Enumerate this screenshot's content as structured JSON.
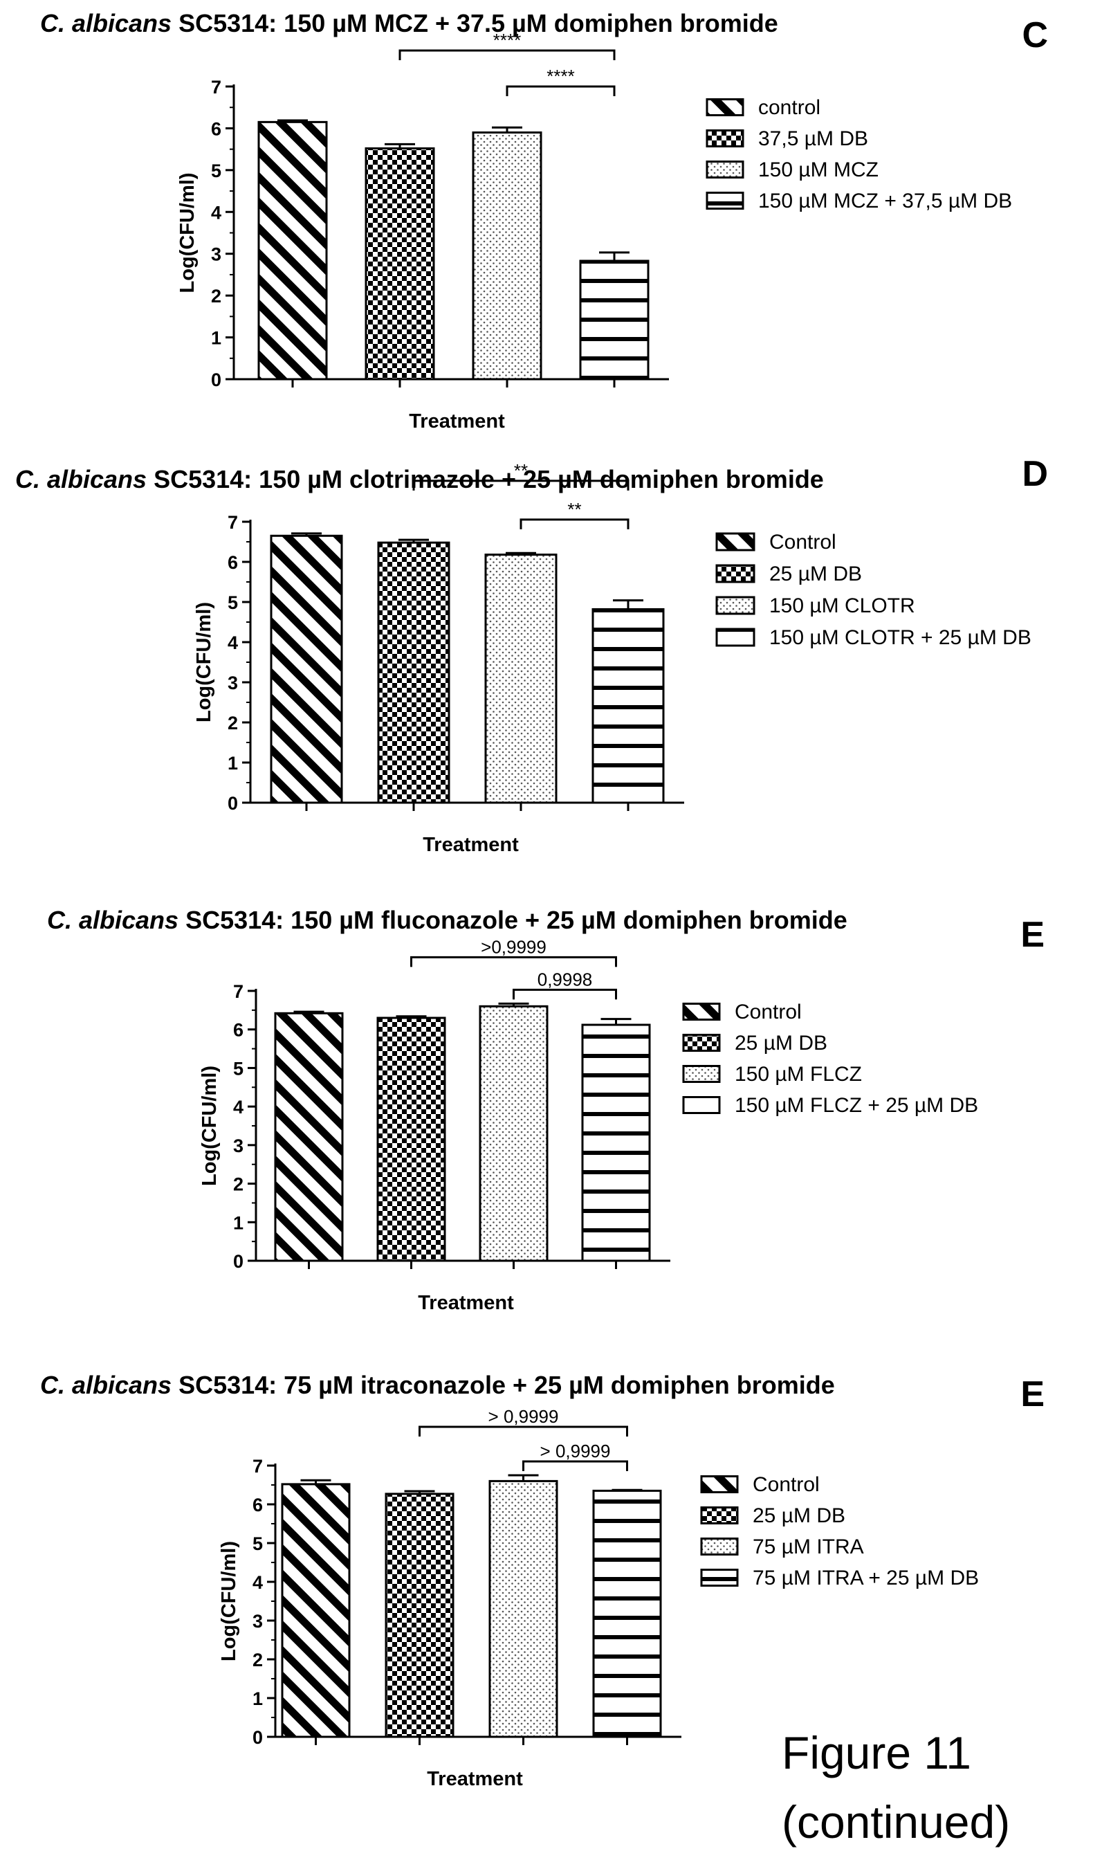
{
  "figure": {
    "caption_line1": "Figure 11",
    "caption_line2": "(continued)"
  },
  "chart_data": [
    {
      "type": "bar",
      "panel": "C",
      "title_species": "C. albicans",
      "title_rest": " SC5314: 150 µM MCZ + 37.5 µM domiphen bromide",
      "xlabel": "Treatment",
      "ylabel": "Log(CFU/ml)",
      "ylim": [
        0,
        7
      ],
      "yticks": [
        "0",
        "1",
        "2",
        "3",
        "4",
        "5",
        "6",
        "7"
      ],
      "categories": [
        "control",
        "37,5 µM DB",
        "150 µM MCZ",
        "150 µM MCZ + 37,5 µM DB"
      ],
      "values": [
        6.15,
        5.52,
        5.9,
        2.83
      ],
      "errors": [
        0.04,
        0.1,
        0.12,
        0.2
      ],
      "patterns": [
        "diag",
        "check",
        "dots",
        "hstripe"
      ],
      "legend_position": "right",
      "significance": [
        {
          "from": 1,
          "to": 3,
          "label": "****"
        },
        {
          "from": 2,
          "to": 3,
          "label": "****"
        }
      ]
    },
    {
      "type": "bar",
      "panel": "D",
      "title_species": "C. albicans",
      "title_rest": " SC5314: 150 µM clotrimazole + 25 µM domiphen bromide",
      "xlabel": "Treatment",
      "ylabel": "Log(CFU/ml)",
      "ylim": [
        0,
        7
      ],
      "yticks": [
        "0",
        "1",
        "2",
        "3",
        "4",
        "5",
        "6",
        "7"
      ],
      "categories": [
        "Control",
        "25 µM DB",
        "150 µM CLOTR",
        "150 µM CLOTR + 25 µM DB"
      ],
      "values": [
        6.65,
        6.48,
        6.18,
        4.82
      ],
      "errors": [
        0.06,
        0.07,
        0.04,
        0.22
      ],
      "patterns": [
        "diag",
        "check",
        "dots",
        "hstripe"
      ],
      "legend_position": "right",
      "significance": [
        {
          "from": 1,
          "to": 3,
          "label": "**"
        },
        {
          "from": 2,
          "to": 3,
          "label": "**"
        }
      ]
    },
    {
      "type": "bar",
      "panel": "E",
      "title_species": "C. albicans",
      "title_rest": " SC5314: 150 µM fluconazole + 25 µM domiphen bromide",
      "xlabel": "Treatment",
      "ylabel": "Log(CFU/ml)",
      "ylim": [
        0,
        7
      ],
      "yticks": [
        "0",
        "1",
        "2",
        "3",
        "4",
        "5",
        "6",
        "7"
      ],
      "categories": [
        "Control",
        "25 µM DB",
        "150 µM FLCZ",
        "150 µM FLCZ + 25 µM DB"
      ],
      "values": [
        6.42,
        6.3,
        6.6,
        6.12
      ],
      "errors": [
        0.04,
        0.04,
        0.07,
        0.15
      ],
      "patterns": [
        "diag",
        "check",
        "dots",
        "hstripe"
      ],
      "legend_position": "right",
      "significance": [
        {
          "from": 1,
          "to": 3,
          "label": ">0,9999"
        },
        {
          "from": 2,
          "to": 3,
          "label": "0,9998"
        }
      ]
    },
    {
      "type": "bar",
      "panel": "E",
      "title_species": "C. albicans",
      "title_rest": " SC5314: 75 µM itraconazole + 25 µM domiphen bromide",
      "xlabel": "Treatment",
      "ylabel": "Log(CFU/ml)",
      "ylim": [
        0,
        7
      ],
      "yticks": [
        "0",
        "1",
        "2",
        "3",
        "4",
        "5",
        "6",
        "7"
      ],
      "categories": [
        "Control",
        "25 µM DB",
        "75 µM ITRA",
        "75 µM ITRA + 25 µM DB"
      ],
      "values": [
        6.52,
        6.27,
        6.6,
        6.35
      ],
      "errors": [
        0.1,
        0.07,
        0.15,
        0.02
      ],
      "patterns": [
        "diag",
        "check",
        "dots",
        "hstripe"
      ],
      "legend_position": "right",
      "significance": [
        {
          "from": 1,
          "to": 3,
          "label": "> 0,9999"
        },
        {
          "from": 2,
          "to": 3,
          "label": "> 0,9999"
        }
      ]
    }
  ]
}
